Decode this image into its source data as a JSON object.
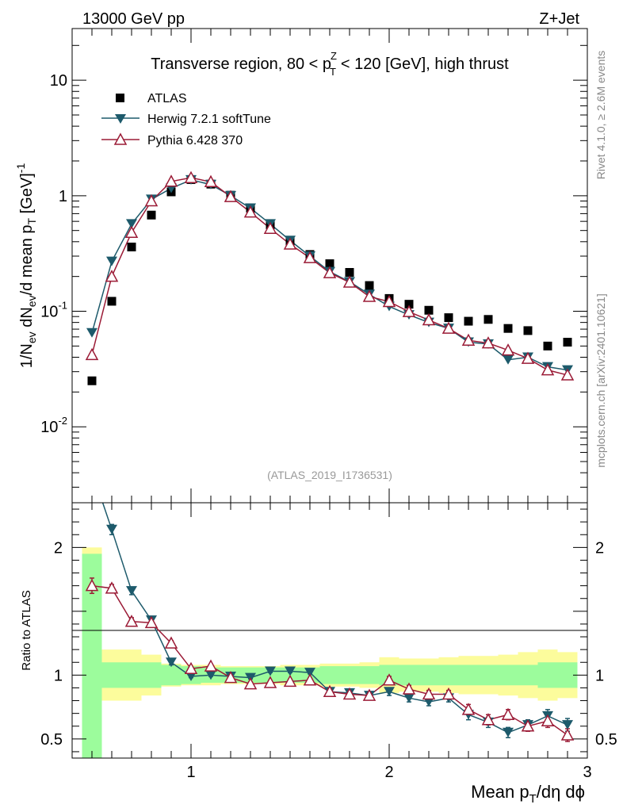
{
  "header": {
    "left": "13000 GeV pp",
    "right": "Z+Jet"
  },
  "side_labels": {
    "rivet": "Rivet 4.1.0, ≥ 2.6M events",
    "mcplots": "mcplots.cern.ch [arXiv:2401.10621]"
  },
  "colors": {
    "atlas": "#000000",
    "herwig": "#1d5a6b",
    "pythia": "#9b1b36",
    "band_inner": "#9cfc9c",
    "band_outer": "#fcfc9c"
  },
  "chart_data": [
    {
      "type": "scatter",
      "title": "Transverse region, 80 < p_T^Z < 120 [GeV], high thrust",
      "title_parts": {
        "a": "Transverse region, 80 < p",
        "sub": "T",
        "sup": "Z",
        "b": "< 120 [GeV], high thrust"
      },
      "ylabel": "1/N_ev dN_ev/d mean p_T [GeV]^-1",
      "ylabel_parts": {
        "a": "1/N",
        "s1": "ev",
        "b": " dN",
        "s2": "ev",
        "c": "/d mean p",
        "s3": "T",
        "d": " [GeV]",
        "e": "-1"
      },
      "yscale": "log",
      "xlim": [
        0.4,
        3.0
      ],
      "ylim": [
        0.0022,
        28
      ],
      "yticks": [
        {
          "base": "10",
          "exp": "-2",
          "value": 0.01
        },
        {
          "base": "10",
          "exp": "-1",
          "value": 0.1
        },
        {
          "base": "1",
          "exp": "",
          "value": 1
        },
        {
          "base": "10",
          "exp": "",
          "value": 10
        }
      ],
      "watermark": "(ATLAS_2019_I1736531)",
      "legend_position": "top-left",
      "x": [
        0.5,
        0.6,
        0.7,
        0.8,
        0.9,
        1.0,
        1.1,
        1.2,
        1.3,
        1.4,
        1.5,
        1.6,
        1.7,
        1.8,
        1.9,
        2.0,
        2.1,
        2.2,
        2.3,
        2.4,
        2.5,
        2.6,
        2.7,
        2.8,
        2.9
      ],
      "series": [
        {
          "name": "ATLAS",
          "marker": "square",
          "values": [
            0.025,
            0.122,
            0.36,
            0.68,
            1.08,
            1.38,
            1.26,
            1.01,
            0.78,
            0.56,
            0.4,
            0.31,
            0.258,
            0.217,
            0.167,
            0.129,
            0.115,
            0.102,
            0.088,
            0.082,
            0.085,
            0.071,
            0.068,
            0.05,
            0.054
          ]
        },
        {
          "name": "Herwig 7.2.1 softTune",
          "marker": "triangle-down",
          "values": [
            0.065,
            0.27,
            0.57,
            0.93,
            1.16,
            1.37,
            1.25,
            1.0,
            0.78,
            0.57,
            0.41,
            0.3,
            0.22,
            0.18,
            0.14,
            0.11,
            0.093,
            0.08,
            0.071,
            0.054,
            0.052,
            0.038,
            0.04,
            0.033,
            0.031
          ]
        },
        {
          "name": "Pythia 6.428 370",
          "marker": "triangle-up-open",
          "values": [
            0.042,
            0.2,
            0.48,
            0.9,
            1.33,
            1.43,
            1.32,
            0.98,
            0.72,
            0.52,
            0.38,
            0.29,
            0.215,
            0.178,
            0.134,
            0.121,
            0.099,
            0.084,
            0.071,
            0.056,
            0.053,
            0.046,
            0.039,
            0.031,
            0.028
          ]
        }
      ]
    },
    {
      "type": "line",
      "ylabel": "Ratio to ATLAS",
      "xlabel": "Mean p_T/dη dϕ",
      "xlabel_parts": {
        "a": "Mean p",
        "sub": "T",
        "b": "/dη dϕ"
      },
      "xlim": [
        0.4,
        3.0
      ],
      "ylim": [
        0.35,
        2.35
      ],
      "xticks": [
        {
          "label": "1",
          "value": 1
        },
        {
          "label": "2",
          "value": 2
        },
        {
          "label": "3",
          "value": 3
        }
      ],
      "yticks": [
        {
          "label": "0.5",
          "value": 0.5
        },
        {
          "label": "1",
          "value": 1
        },
        {
          "label": "2",
          "value": 2
        }
      ],
      "x": [
        0.5,
        0.6,
        0.7,
        0.8,
        0.9,
        1.0,
        1.1,
        1.2,
        1.3,
        1.4,
        1.5,
        1.6,
        1.7,
        1.8,
        1.9,
        2.0,
        2.1,
        2.2,
        2.3,
        2.4,
        2.5,
        2.6,
        2.7,
        2.8,
        2.9
      ],
      "band_inner": [
        0.95,
        0.1,
        0.1,
        0.1,
        0.08,
        0.07,
        0.06,
        0.06,
        0.06,
        0.06,
        0.06,
        0.06,
        0.07,
        0.07,
        0.07,
        0.08,
        0.08,
        0.08,
        0.08,
        0.08,
        0.08,
        0.08,
        0.08,
        0.1,
        0.1
      ],
      "band_outer": [
        1.0,
        0.2,
        0.2,
        0.16,
        0.09,
        0.08,
        0.08,
        0.07,
        0.07,
        0.07,
        0.08,
        0.08,
        0.09,
        0.09,
        0.1,
        0.14,
        0.13,
        0.13,
        0.14,
        0.15,
        0.15,
        0.16,
        0.18,
        0.2,
        0.18
      ],
      "series": [
        {
          "name": "Herwig 7.2.1 softTune",
          "marker": "triangle-down",
          "values": [
            2.6,
            2.14,
            1.66,
            1.43,
            1.1,
            0.99,
            1.0,
            0.99,
            0.98,
            1.03,
            1.03,
            1.02,
            0.87,
            0.86,
            0.84,
            0.87,
            0.82,
            0.79,
            0.82,
            0.69,
            0.63,
            0.55,
            0.61,
            0.68,
            0.61
          ],
          "errors": [
            0.06,
            0.04,
            0.03,
            0.02,
            0.02,
            0.01,
            0.01,
            0.01,
            0.01,
            0.01,
            0.01,
            0.01,
            0.02,
            0.02,
            0.02,
            0.03,
            0.03,
            0.03,
            0.03,
            0.04,
            0.04,
            0.04,
            0.04,
            0.05,
            0.05
          ]
        },
        {
          "name": "Pythia 6.428 370",
          "marker": "triangle-up-open",
          "values": [
            1.7,
            1.68,
            1.42,
            1.41,
            1.25,
            1.05,
            1.07,
            0.98,
            0.93,
            0.94,
            0.95,
            0.96,
            0.87,
            0.85,
            0.84,
            0.96,
            0.89,
            0.85,
            0.85,
            0.73,
            0.65,
            0.69,
            0.6,
            0.64,
            0.53
          ],
          "errors": [
            0.06,
            0.03,
            0.03,
            0.02,
            0.02,
            0.01,
            0.01,
            0.01,
            0.01,
            0.01,
            0.01,
            0.01,
            0.02,
            0.02,
            0.02,
            0.03,
            0.03,
            0.03,
            0.03,
            0.04,
            0.04,
            0.04,
            0.04,
            0.05,
            0.05
          ]
        }
      ]
    }
  ]
}
